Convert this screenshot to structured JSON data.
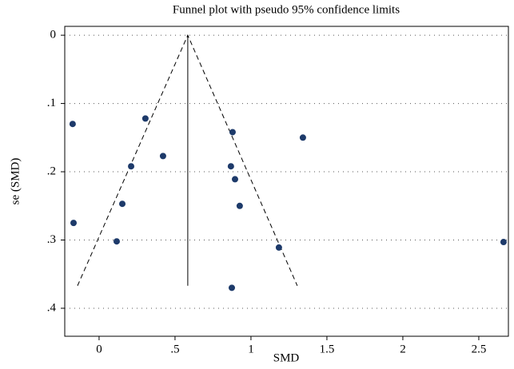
{
  "chart_data": {
    "type": "scatter",
    "title": "Funnel plot with pseudo 95% confidence limits",
    "x_label": "SMD",
    "y_label": "se (SMD)",
    "x": [
      -0.174,
      0.305,
      -0.168,
      0.211,
      0.153,
      0.116,
      0.421,
      0.879,
      1.342,
      0.868,
      0.895,
      0.926,
      1.184,
      0.874,
      2.663
    ],
    "values": [
      0.13,
      0.122,
      0.275,
      0.192,
      0.247,
      0.302,
      0.177,
      0.142,
      0.15,
      0.192,
      0.211,
      0.25,
      0.311,
      0.37,
      0.303
    ],
    "color": "#1d3a6a",
    "funnel": {
      "x": [
        -0.142,
        0.584,
        1.305
      ],
      "y": [
        0.367,
        0,
        0.367
      ]
    },
    "pooled": {
      "x": [
        0.584,
        0.584
      ],
      "y": [
        0,
        0.367
      ]
    },
    "xlim": [
      -0.226,
      2.695
    ],
    "xticks": [
      0,
      {
        "value": 0.5,
        "label": ".5"
      },
      1,
      1.5,
      2,
      2.5
    ],
    "ylim": [
      -0.013,
      0.441
    ],
    "y_reversed": true,
    "yticks": [
      0,
      {
        "value": 0.1,
        "label": ".1"
      },
      {
        "value": 0.2,
        "label": ".2"
      },
      {
        "value": 0.3,
        "label": ".3"
      },
      {
        "value": 0.4,
        "label": ".4"
      }
    ],
    "grid": true
  }
}
